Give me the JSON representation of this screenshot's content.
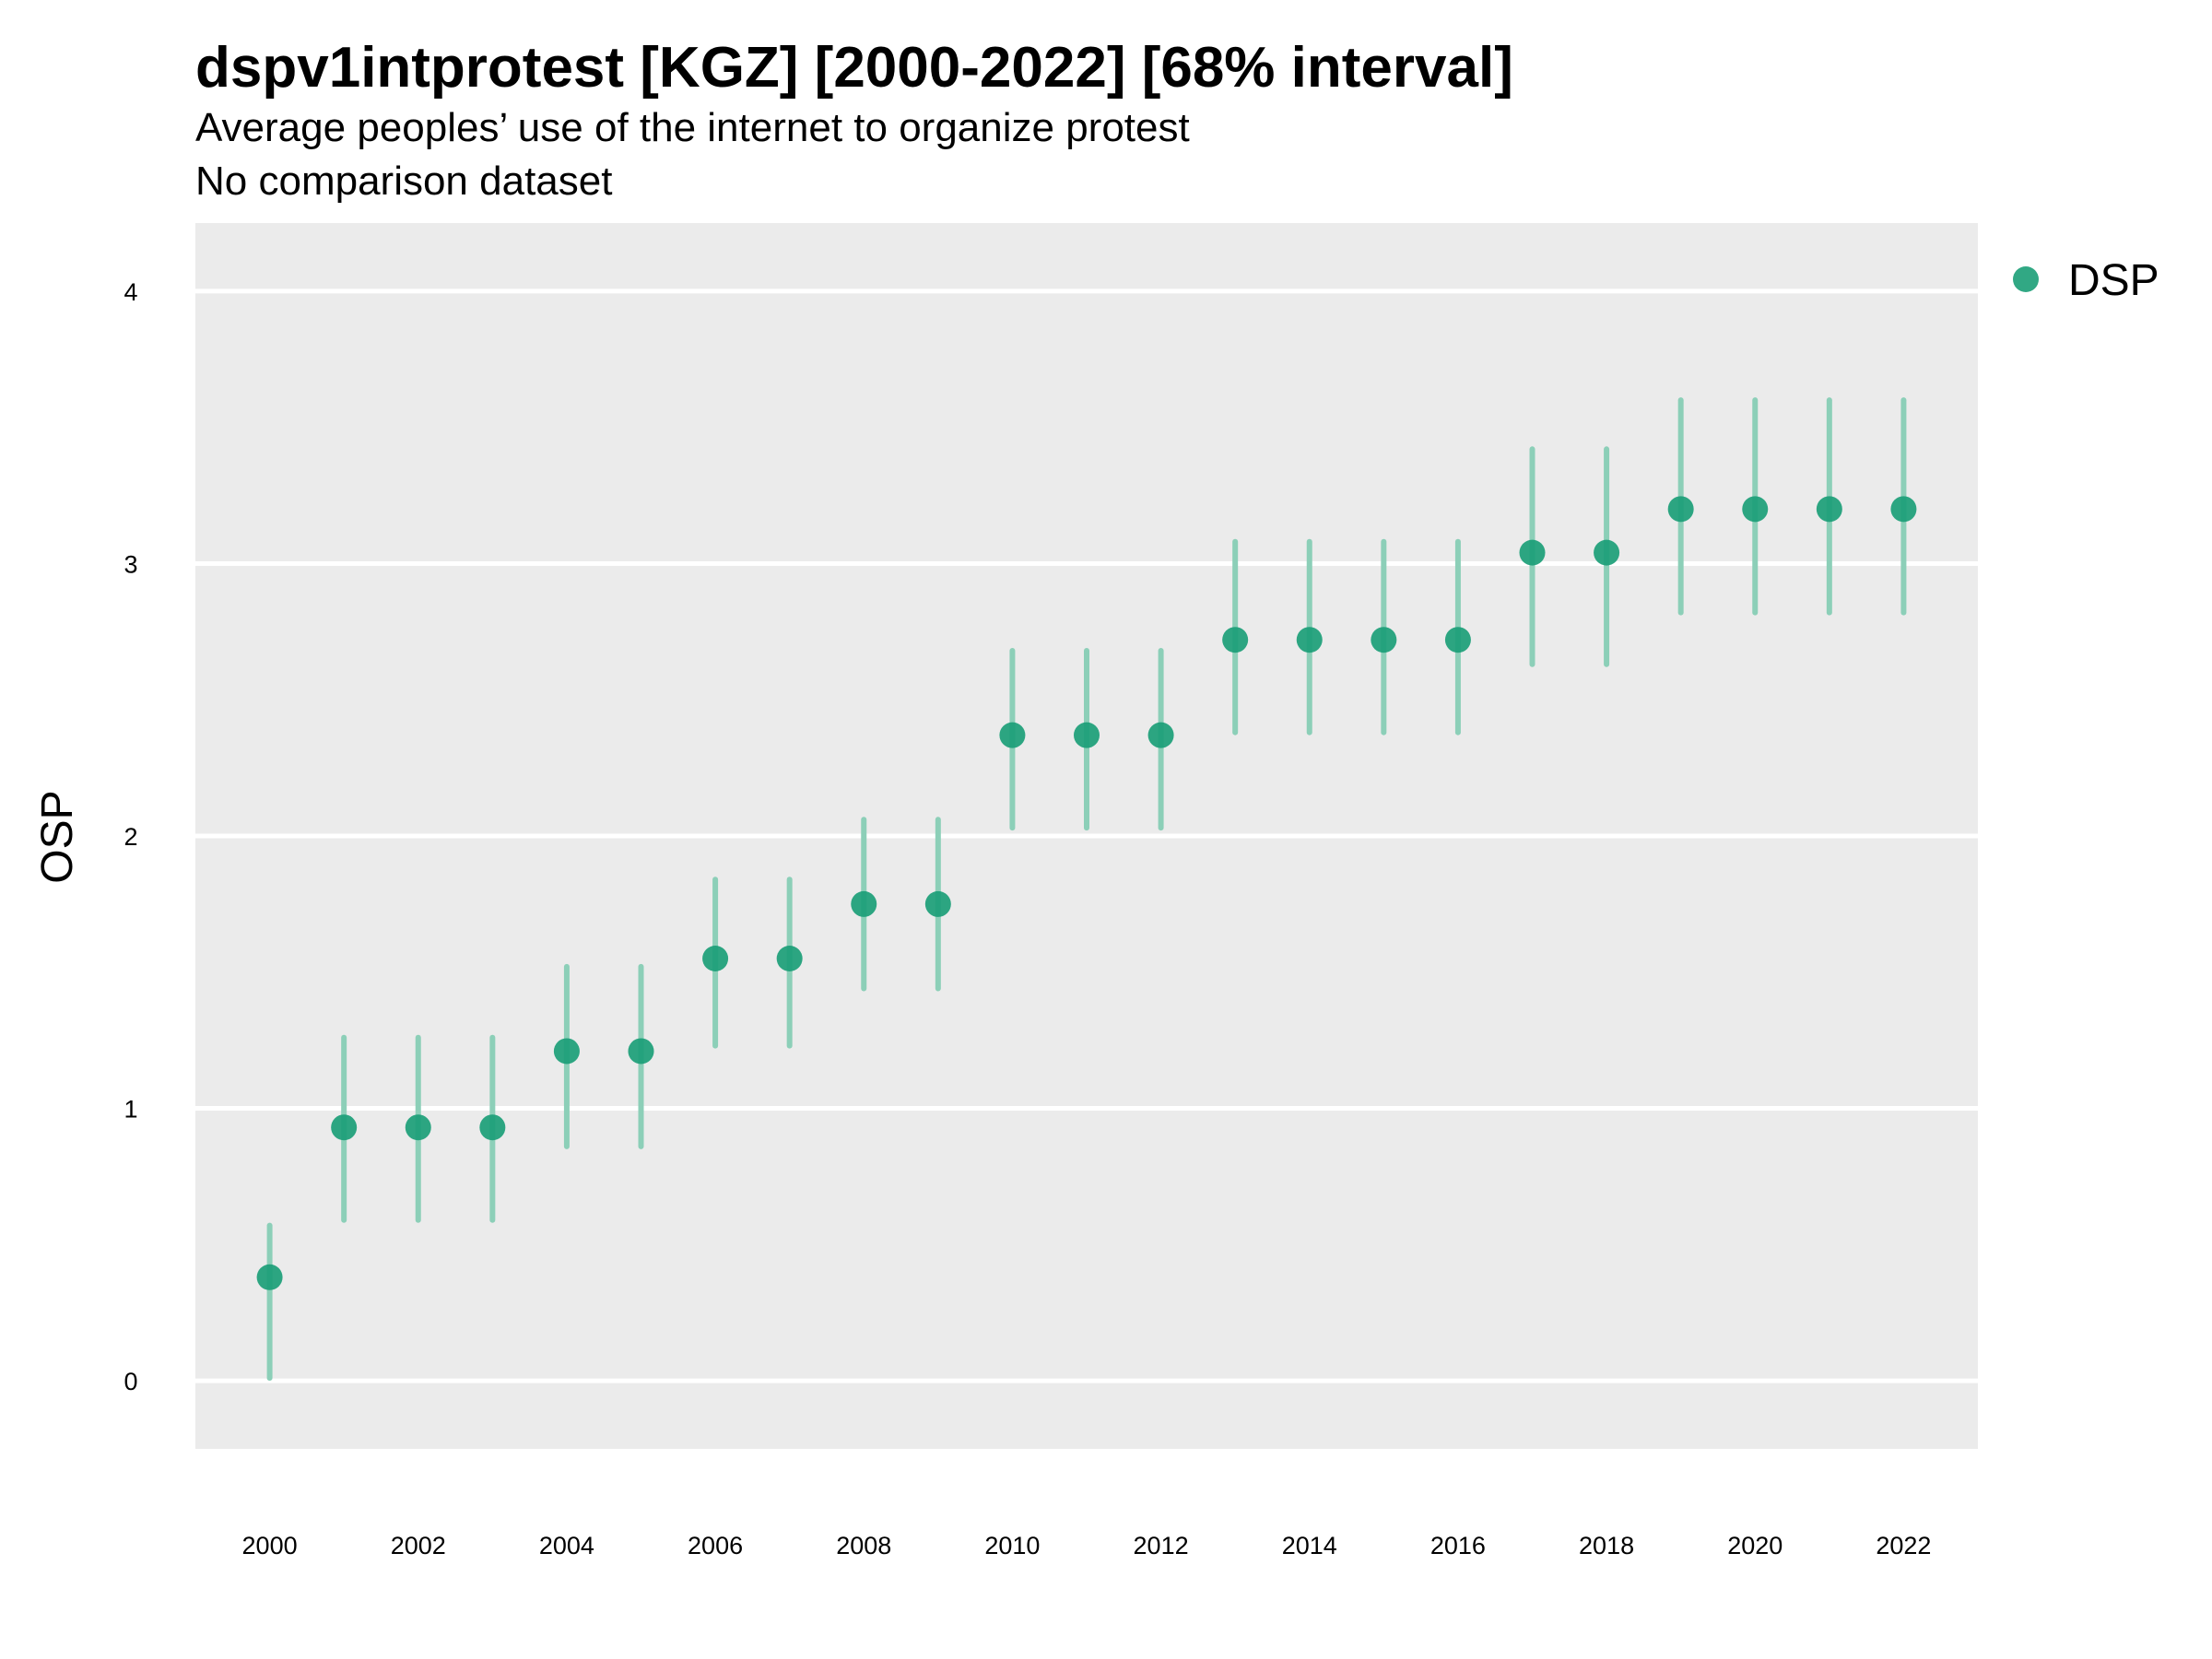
{
  "header": {
    "title": "dspv1intprotest [KGZ] [2000-2022] [68% interval]",
    "subtitle": "Average peoples’ use of the internet to organize protest",
    "note": "No comparison dataset"
  },
  "colors": {
    "panel_background": "#ebebeb",
    "grid": "#ffffff",
    "point": "#1b9e77",
    "interval": "#8ccfb8"
  },
  "chart_data": {
    "type": "scatter",
    "title": "dspv1intprotest [KGZ] [2000-2022] [68% interval]",
    "subtitle": "Average peoples’ use of the internet to organize protest",
    "xlabel": "",
    "ylabel": "OSP",
    "xlim": [
      1999,
      2023
    ],
    "ylim": [
      -0.25,
      4.25
    ],
    "x_ticks": [
      2000,
      2002,
      2004,
      2006,
      2008,
      2010,
      2012,
      2014,
      2016,
      2018,
      2020,
      2022
    ],
    "y_ticks": [
      0,
      1,
      2,
      3,
      4
    ],
    "grid": true,
    "legend": {
      "position": "right",
      "entries": [
        "DSP"
      ]
    },
    "series": [
      {
        "name": "DSP",
        "x": [
          2000,
          2001,
          2002,
          2003,
          2004,
          2005,
          2006,
          2007,
          2008,
          2009,
          2010,
          2011,
          2012,
          2013,
          2014,
          2015,
          2016,
          2017,
          2018,
          2019,
          2020,
          2021,
          2022
        ],
        "y": [
          0.38,
          0.93,
          0.93,
          0.93,
          1.21,
          1.21,
          1.55,
          1.55,
          1.75,
          1.75,
          2.37,
          2.37,
          2.37,
          2.72,
          2.72,
          2.72,
          2.72,
          3.04,
          3.04,
          3.2,
          3.2,
          3.2,
          3.2
        ],
        "lower": [
          0.01,
          0.59,
          0.59,
          0.59,
          0.86,
          0.86,
          1.23,
          1.23,
          1.44,
          1.44,
          2.03,
          2.03,
          2.03,
          2.38,
          2.38,
          2.38,
          2.38,
          2.63,
          2.63,
          2.82,
          2.82,
          2.82,
          2.82
        ],
        "upper": [
          0.57,
          1.26,
          1.26,
          1.26,
          1.52,
          1.52,
          1.84,
          1.84,
          2.06,
          2.06,
          2.68,
          2.68,
          2.68,
          3.08,
          3.08,
          3.08,
          3.08,
          3.42,
          3.42,
          3.6,
          3.6,
          3.6,
          3.6
        ]
      }
    ]
  }
}
